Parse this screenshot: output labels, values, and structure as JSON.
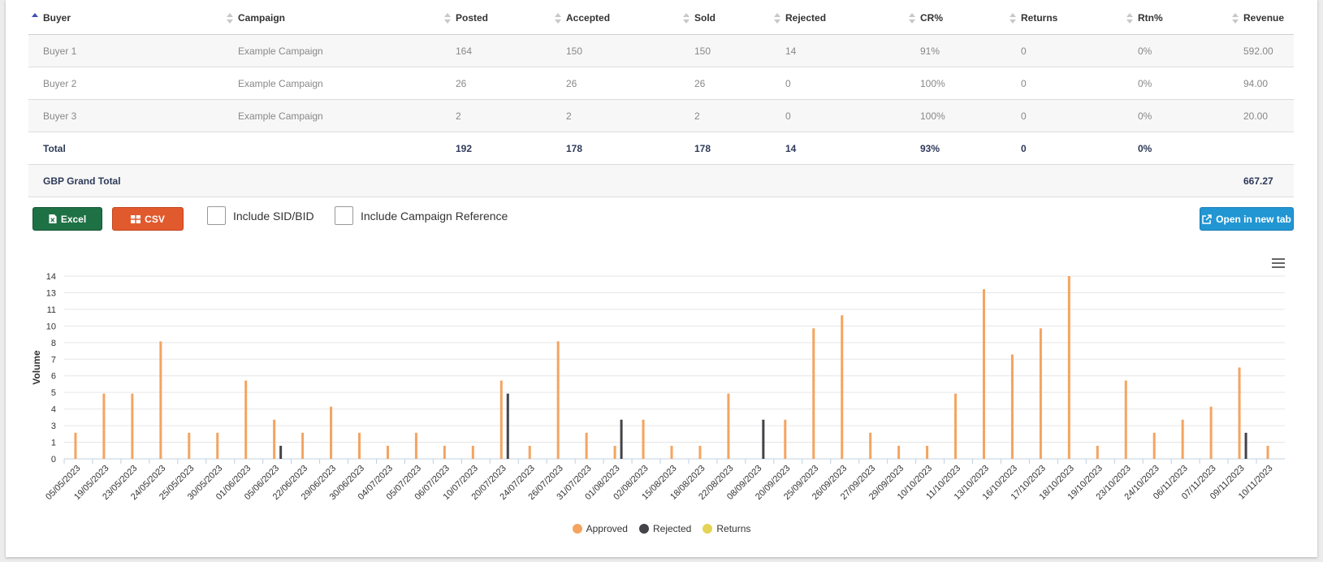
{
  "table": {
    "headers": [
      "Buyer",
      "Campaign",
      "Posted",
      "Accepted",
      "Sold",
      "Rejected",
      "CR%",
      "Returns",
      "Rtn%",
      "Revenue"
    ],
    "rows": [
      [
        "Buyer 1",
        "Example Campaign",
        "164",
        "150",
        "150",
        "14",
        "91%",
        "0",
        "0%",
        "592.00"
      ],
      [
        "Buyer 2",
        "Example Campaign",
        "26",
        "26",
        "26",
        "0",
        "100%",
        "0",
        "0%",
        "94.00"
      ],
      [
        "Buyer 3",
        "Example Campaign",
        "2",
        "2",
        "2",
        "0",
        "100%",
        "0",
        "0%",
        "20.00"
      ]
    ],
    "total": [
      "Total",
      "",
      "192",
      "178",
      "178",
      "14",
      "93%",
      "0",
      "0%",
      ""
    ],
    "grand_total": {
      "label": "GBP Grand Total",
      "value": "667.27"
    }
  },
  "toolbar": {
    "excel_label": "Excel",
    "csv_label": "CSV",
    "include_sid_label": "Include SID/BID",
    "include_campaign_ref_label": "Include Campaign Reference",
    "open_new_tab_label": "Open in new tab"
  },
  "icons": {
    "excel": "file-excel-icon",
    "csv": "table-icon",
    "open": "external-link-icon",
    "menu": "hamburger-menu-icon"
  },
  "colors": {
    "approved": "#f4a460",
    "rejected": "#434348",
    "returns": "#e4d354",
    "excel": "#1e7145",
    "csv": "#e15a2e",
    "open": "#2196d3"
  },
  "chart_data": {
    "type": "bar",
    "ylabel": "Volume",
    "ytick_labels": [
      "0",
      "1",
      "3",
      "4",
      "5",
      "6",
      "7",
      "8",
      "10",
      "11",
      "13",
      "14"
    ],
    "ylim": [
      0,
      14
    ],
    "grid": true,
    "legend_position": "bottom-center",
    "categories": [
      "05/05/2023",
      "19/05/2023",
      "23/05/2023",
      "24/05/2023",
      "25/05/2023",
      "30/05/2023",
      "01/06/2023",
      "05/06/2023",
      "22/06/2023",
      "29/06/2023",
      "30/06/2023",
      "04/07/2023",
      "05/07/2023",
      "06/07/2023",
      "10/07/2023",
      "20/07/2023",
      "24/07/2023",
      "26/07/2023",
      "31/07/2023",
      "01/08/2023",
      "02/08/2023",
      "15/08/2023",
      "18/08/2023",
      "22/08/2023",
      "08/09/2023",
      "20/09/2023",
      "25/09/2023",
      "26/09/2023",
      "27/09/2023",
      "29/09/2023",
      "10/10/2023",
      "11/10/2023",
      "13/10/2023",
      "16/10/2023",
      "17/10/2023",
      "18/10/2023",
      "19/10/2023",
      "23/10/2023",
      "24/10/2023",
      "06/11/2023",
      "07/11/2023",
      "09/11/2023",
      "10/11/2023"
    ],
    "series": [
      {
        "name": "Approved",
        "values": [
          2,
          5,
          5,
          9,
          2,
          2,
          6,
          3,
          2,
          4,
          2,
          1,
          2,
          1,
          1,
          6,
          1,
          9,
          2,
          1,
          3,
          1,
          1,
          5,
          0,
          3,
          10,
          11,
          2,
          1,
          1,
          5,
          13,
          8,
          10,
          14,
          1,
          6,
          2,
          3,
          4,
          7,
          1
        ]
      },
      {
        "name": "Rejected",
        "values": [
          0,
          0,
          0,
          0,
          0,
          0,
          0,
          1,
          0,
          0,
          0,
          0,
          0,
          0,
          0,
          5,
          0,
          0,
          0,
          3,
          0,
          0,
          0,
          0,
          3,
          0,
          0,
          0,
          0,
          0,
          0,
          0,
          0,
          0,
          0,
          0,
          0,
          0,
          0,
          0,
          0,
          2,
          0
        ]
      },
      {
        "name": "Returns",
        "values": [
          0,
          0,
          0,
          0,
          0,
          0,
          0,
          0,
          0,
          0,
          0,
          0,
          0,
          0,
          0,
          0,
          0,
          0,
          0,
          0,
          0,
          0,
          0,
          0,
          0,
          0,
          0,
          0,
          0,
          0,
          0,
          0,
          0,
          0,
          0,
          0,
          0,
          0,
          0,
          0,
          0,
          0,
          0
        ]
      }
    ]
  }
}
